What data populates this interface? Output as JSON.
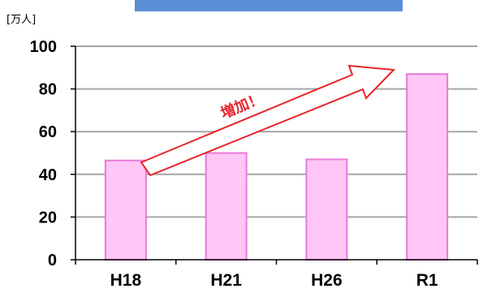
{
  "colors": {
    "header_bar": "#5b8fd6",
    "bar_fill": "#ffc6f6",
    "bar_stroke": "#e87ad6",
    "grid": "#a6a6a6",
    "axis": "#000000",
    "arrow": "#e8242a"
  },
  "chart_data": {
    "type": "bar",
    "unit_label": "[万人]",
    "categories": [
      "H18",
      "H21",
      "H26",
      "R1"
    ],
    "values": [
      46.5,
      50,
      47,
      87
    ],
    "ylim": [
      0,
      100
    ],
    "y_ticks": [
      "0",
      "20",
      "40",
      "60",
      "80",
      "100"
    ],
    "grid": true,
    "annotation": {
      "text": "増加！",
      "shape": "arrow",
      "from_category": "H18",
      "to_category": "R1"
    }
  }
}
